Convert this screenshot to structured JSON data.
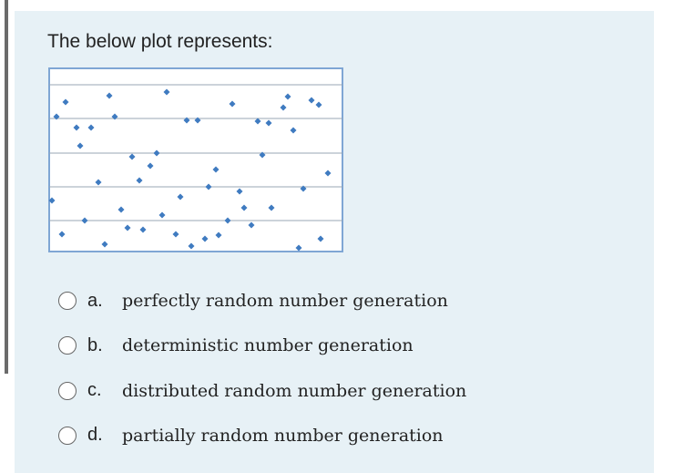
{
  "question": "The below plot represents:",
  "options": [
    {
      "letter": "a.",
      "text": "perfectly random number generation"
    },
    {
      "letter": "b.",
      "text": "deterministic number generation"
    },
    {
      "letter": "c.",
      "text": "distributed random number generation"
    },
    {
      "letter": "d.",
      "text": "partially random number generation"
    }
  ]
}
